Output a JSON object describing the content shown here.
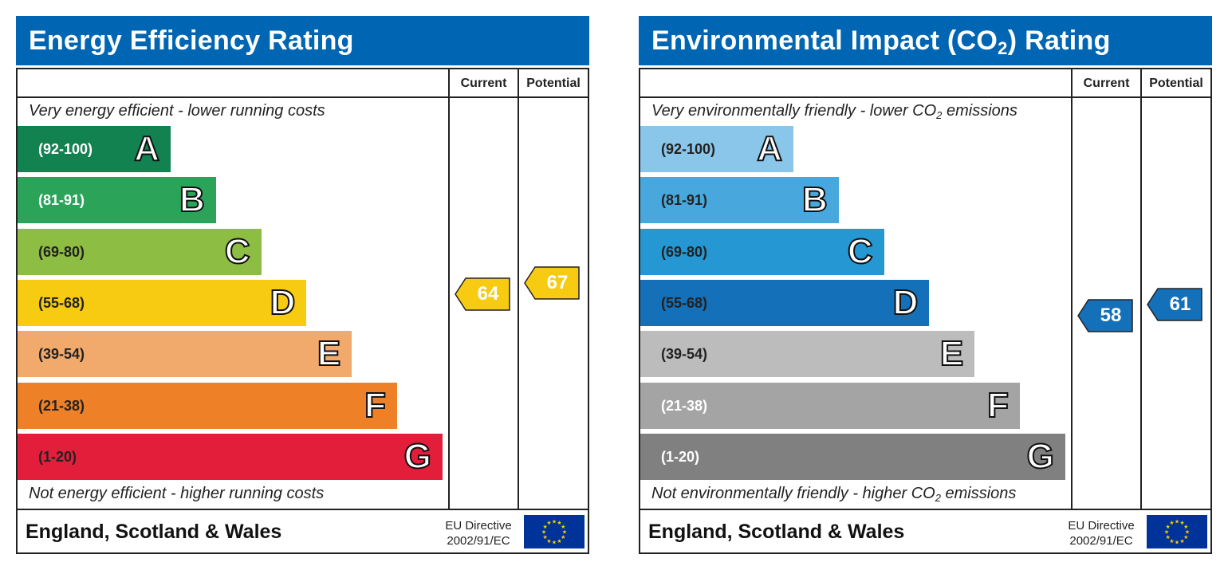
{
  "chart_data": [
    {
      "type": "bar",
      "title": "Energy Efficiency Rating",
      "columns": [
        "Current",
        "Potential"
      ],
      "top_note": "Very energy efficient - lower running costs",
      "bottom_note": "Not energy efficient - higher running costs",
      "bands": [
        {
          "letter": "A",
          "range": "(92-100)",
          "min": 92,
          "max": 100,
          "color": "#138251",
          "text_color": "#ffffff"
        },
        {
          "letter": "B",
          "range": "(81-91)",
          "min": 81,
          "max": 91,
          "color": "#2ba45a",
          "text_color": "#ffffff"
        },
        {
          "letter": "C",
          "range": "(69-80)",
          "min": 69,
          "max": 80,
          "color": "#8dbd43",
          "text_color": "#222222"
        },
        {
          "letter": "D",
          "range": "(55-68)",
          "min": 55,
          "max": 68,
          "color": "#f6cb12",
          "text_color": "#222222"
        },
        {
          "letter": "E",
          "range": "(39-54)",
          "min": 39,
          "max": 54,
          "color": "#f2a96c",
          "text_color": "#222222"
        },
        {
          "letter": "F",
          "range": "(21-38)",
          "min": 21,
          "max": 38,
          "color": "#ee8128",
          "text_color": "#222222"
        },
        {
          "letter": "G",
          "range": "(1-20)",
          "min": 1,
          "max": 20,
          "color": "#e31e3b",
          "text_color": "#222222"
        }
      ],
      "current": 64,
      "potential": 67,
      "indicator_color": "#f6cb12",
      "indicator_text_color": "#ffffff",
      "footer": "England, Scotland & Wales",
      "directive_line1": "EU Directive",
      "directive_line2": "2002/91/EC"
    },
    {
      "type": "bar",
      "title": "Environmental Impact (CO2) Rating",
      "title_main": "Environmental Impact (CO",
      "title_sub": "2",
      "title_end": ") Rating",
      "columns": [
        "Current",
        "Potential"
      ],
      "top_note": "Very environmentally friendly - lower CO2 emissions",
      "top_note_main": "Very environmentally friendly - lower CO",
      "top_note_sub": "2",
      "top_note_end": " emissions",
      "bottom_note": "Not environmentally friendly - higher CO2 emissions",
      "bottom_note_main": "Not environmentally friendly - higher CO",
      "bottom_note_sub": "2",
      "bottom_note_end": " emissions",
      "bands": [
        {
          "letter": "A",
          "range": "(92-100)",
          "min": 92,
          "max": 100,
          "color": "#8ac6ea",
          "text_color": "#222222"
        },
        {
          "letter": "B",
          "range": "(81-91)",
          "min": 81,
          "max": 91,
          "color": "#48a8dd",
          "text_color": "#222222"
        },
        {
          "letter": "C",
          "range": "(69-80)",
          "min": 69,
          "max": 80,
          "color": "#2598d4",
          "text_color": "#222222"
        },
        {
          "letter": "D",
          "range": "(55-68)",
          "min": 55,
          "max": 68,
          "color": "#1470b8",
          "text_color": "#222222"
        },
        {
          "letter": "E",
          "range": "(39-54)",
          "min": 39,
          "max": 54,
          "color": "#bcbcbc",
          "text_color": "#222222"
        },
        {
          "letter": "F",
          "range": "(21-38)",
          "min": 21,
          "max": 38,
          "color": "#a4a4a4",
          "text_color": "#ffffff"
        },
        {
          "letter": "G",
          "range": "(1-20)",
          "min": 1,
          "max": 20,
          "color": "#808080",
          "text_color": "#ffffff"
        }
      ],
      "current": 58,
      "potential": 61,
      "indicator_color": "#1470b8",
      "indicator_text_color": "#ffffff",
      "footer": "England, Scotland & Wales",
      "directive_line1": "EU Directive",
      "directive_line2": "2002/91/EC"
    }
  ]
}
